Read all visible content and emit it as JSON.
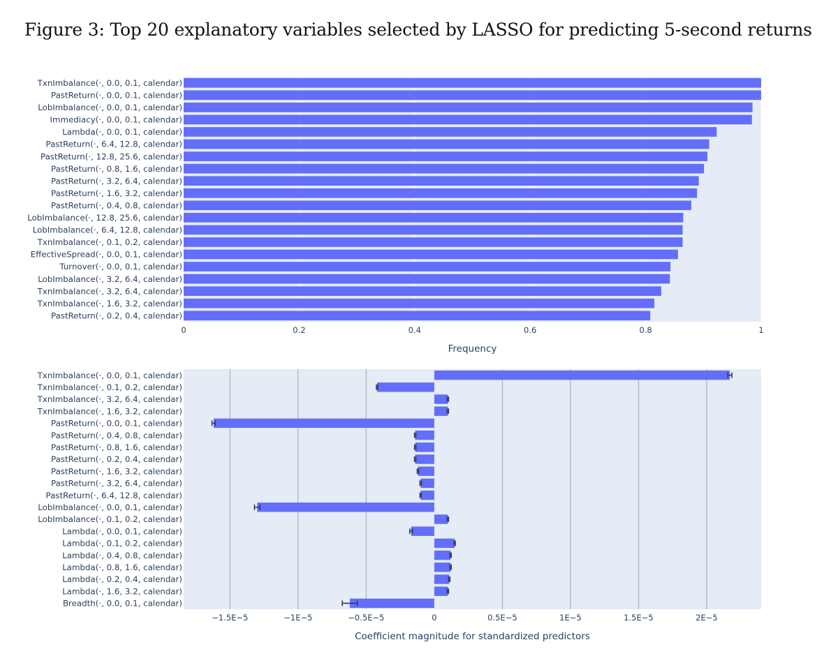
{
  "figure": {
    "title": "Figure 3: Top 20 explanatory variables selected by LASSO for predicting 5-second returns"
  },
  "colors": {
    "bar": "#636efa",
    "plot_bg": "#e5ecf6",
    "grid": "#ffffff",
    "grid_major": "#b8bcc4",
    "text": "#2a3f5f",
    "error_bar": "#2a3f5f"
  },
  "chart_data": [
    {
      "type": "bar",
      "orientation": "horizontal",
      "xlabel": "Frequency",
      "ylabel": "",
      "xlim": [
        0,
        1
      ],
      "xticks": [
        0,
        0.2,
        0.4,
        0.6,
        0.8,
        1
      ],
      "xtick_labels": [
        "0",
        "0.2",
        "0.4",
        "0.6",
        "0.8",
        "1"
      ],
      "grid": true,
      "categories": [
        "TxnImbalance(·, 0.0, 0.1, calendar)",
        "PastReturn(·, 0.0, 0.1, calendar)",
        "LobImbalance(·, 0.0, 0.1, calendar)",
        "Immediacy(·, 0.0, 0.1, calendar)",
        "Lambda(·, 0.0, 0.1, calendar)",
        "PastReturn(·, 6.4, 12.8, calendar)",
        "PastReturn(·, 12.8, 25.6, calendar)",
        "PastReturn(·, 0.8, 1.6, calendar)",
        "PastReturn(·, 3.2, 6.4, calendar)",
        "PastReturn(·, 1.6, 3.2, calendar)",
        "PastReturn(·, 0.4, 0.8, calendar)",
        "LobImbalance(·, 12.8, 25.6, calendar)",
        "LobImbalance(·, 6.4, 12.8, calendar)",
        "TxnImbalance(·, 0.1, 0.2, calendar)",
        "EffectiveSpread(·, 0.0, 0.1, calendar)",
        "Turnover(·, 0.0, 0.1, calendar)",
        "LobImbalance(·, 3.2, 6.4, calendar)",
        "TxnImbalance(·, 3.2, 6.4, calendar)",
        "TxnImbalance(·, 1.6, 3.2, calendar)",
        "PastReturn(·, 0.2, 0.4, calendar)"
      ],
      "values": [
        1.0,
        1.0,
        0.985,
        0.984,
        0.923,
        0.91,
        0.907,
        0.901,
        0.892,
        0.889,
        0.879,
        0.865,
        0.864,
        0.864,
        0.856,
        0.843,
        0.842,
        0.827,
        0.815,
        0.808
      ]
    },
    {
      "type": "bar",
      "orientation": "horizontal",
      "xlabel": "Coefficient magnitude for standardized predictors",
      "ylabel": "",
      "xlim": [
        -1.84e-05,
        2.4e-05
      ],
      "xticks": [
        -1.5e-05,
        -1e-05,
        -5e-06,
        0,
        5e-06,
        1e-05,
        1.5e-05,
        2e-05
      ],
      "xtick_labels": [
        "−1.5E−5",
        "−1E−5",
        "−0.5E−5",
        "0",
        "0.5E−5",
        "1E−5",
        "1.5E−5",
        "2E−5"
      ],
      "grid": true,
      "error_bars": true,
      "categories": [
        "TxnImbalance(·, 0.0, 0.1, calendar)",
        "TxnImbalance(·, 0.1, 0.2, calendar)",
        "TxnImbalance(·, 3.2, 6.4, calendar)",
        "TxnImbalance(·, 1.6, 3.2, calendar)",
        "PastReturn(·, 0.0, 0.1, calendar)",
        "PastReturn(·, 0.4, 0.8, calendar)",
        "PastReturn(·, 0.8, 1.6, calendar)",
        "PastReturn(·, 0.2, 0.4, calendar)",
        "PastReturn(·, 1.6, 3.2, calendar)",
        "PastReturn(·, 3.2, 6.4, calendar)",
        "PastReturn(·, 6.4, 12.8, calendar)",
        "LobImbalance(·, 0.0, 0.1, calendar)",
        "LobImbalance(·, 0.1, 0.2, calendar)",
        "Lambda(·, 0.0, 0.1, calendar)",
        "Lambda(·, 0.1, 0.2, calendar)",
        "Lambda(·, 0.4, 0.8, calendar)",
        "Lambda(·, 0.8, 1.6, calendar)",
        "Lambda(·, 0.2, 0.4, calendar)",
        "Lambda(·, 1.6, 3.2, calendar)",
        "Breadth(·, 0.0, 0.1, calendar)"
      ],
      "values": [
        2.17e-05,
        -4.2e-06,
        1e-06,
        1e-06,
        -1.62e-05,
        -1.4e-06,
        -1.4e-06,
        -1.4e-06,
        -1.2e-06,
        -1e-06,
        -1e-06,
        -1.3e-05,
        1e-06,
        -1.7e-06,
        1.5e-06,
        1.2e-06,
        1.2e-06,
        1.1e-06,
        1e-06,
        -6.2e-06
      ],
      "errors": [
        1.5e-07,
        5e-08,
        5e-08,
        5e-08,
        1.2e-07,
        5e-08,
        5e-08,
        5e-08,
        5e-08,
        5e-08,
        5e-08,
        2e-07,
        5e-08,
        1e-07,
        5e-08,
        5e-08,
        5e-08,
        5e-08,
        5e-08,
        5.5e-07
      ]
    }
  ]
}
